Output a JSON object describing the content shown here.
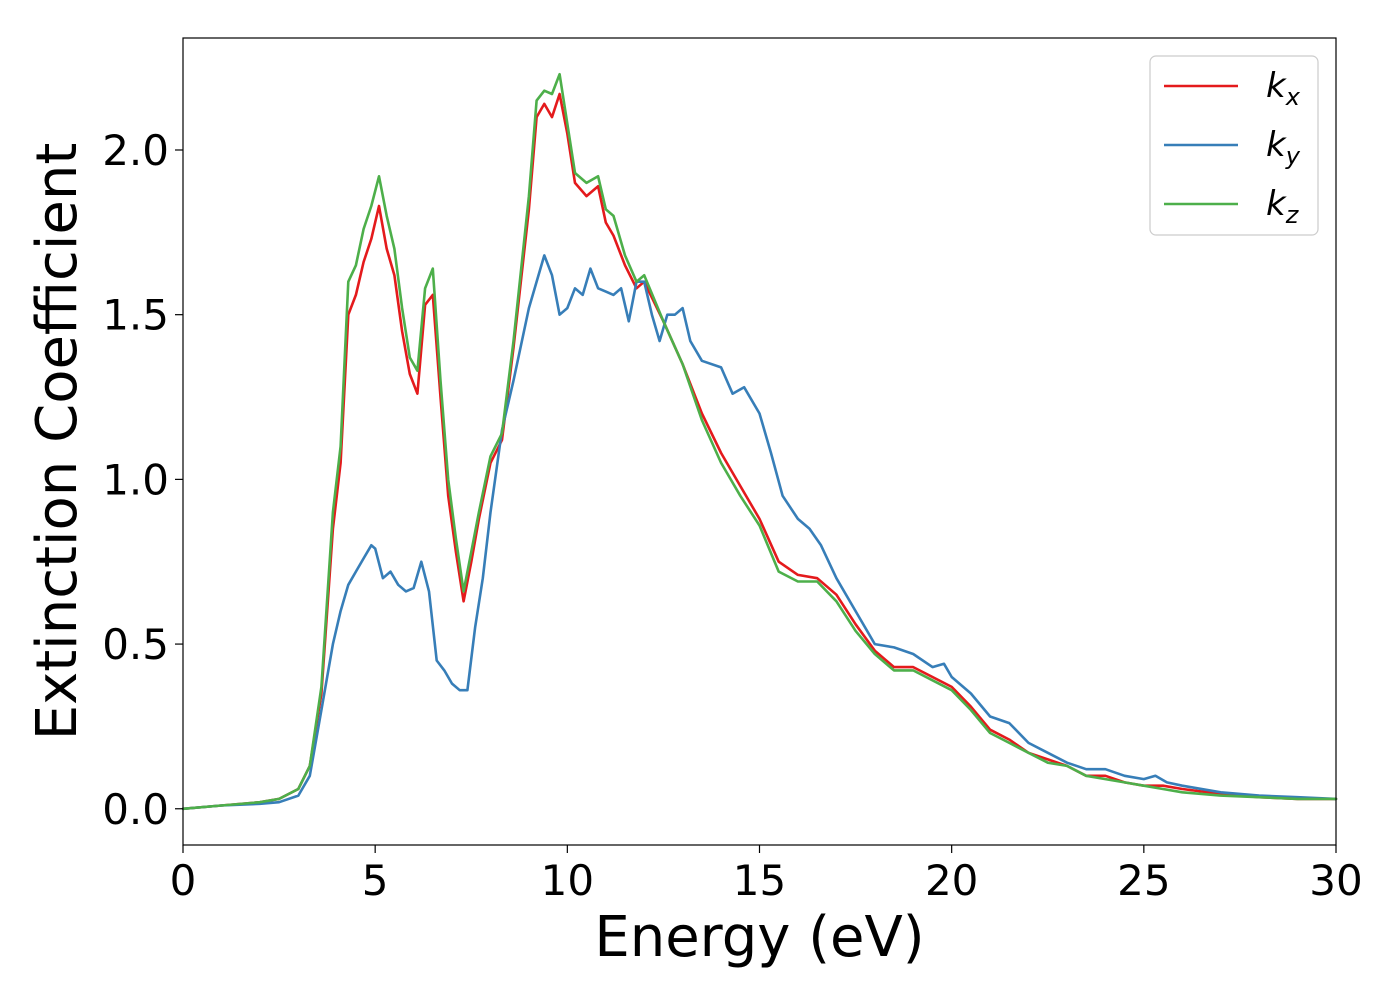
{
  "chart_data": {
    "type": "line",
    "xlabel": "Energy (eV)",
    "ylabel": "Extinction Coefficient",
    "xlim": [
      0,
      30
    ],
    "ylim": [
      -0.11,
      2.34
    ],
    "xticks": [
      0,
      5,
      10,
      15,
      20,
      25,
      30
    ],
    "xtick_labels": [
      "0",
      "5",
      "10",
      "15",
      "20",
      "25",
      "30"
    ],
    "yticks": [
      0.0,
      0.5,
      1.0,
      1.5,
      2.0
    ],
    "ytick_labels": [
      "0.0",
      "0.5",
      "1.0",
      "1.5",
      "2.0"
    ],
    "grid": false,
    "legend_position": "top-right",
    "series": [
      {
        "name": "k",
        "subscript": "x",
        "color": "#e41a1c",
        "x": [
          0,
          1,
          2,
          2.5,
          3,
          3.3,
          3.6,
          3.9,
          4.1,
          4.3,
          4.5,
          4.7,
          4.9,
          5.1,
          5.3,
          5.5,
          5.7,
          5.9,
          6.1,
          6.3,
          6.5,
          6.7,
          6.9,
          7.1,
          7.3,
          7.5,
          7.7,
          8.0,
          8.3,
          8.6,
          9.0,
          9.2,
          9.4,
          9.6,
          9.8,
          10.0,
          10.2,
          10.5,
          10.8,
          11.0,
          11.2,
          11.5,
          11.8,
          12.0,
          12.5,
          13.0,
          13.5,
          14.0,
          14.5,
          15.0,
          15.5,
          16.0,
          16.5,
          17.0,
          17.5,
          18.0,
          18.5,
          19.0,
          19.5,
          20.0,
          20.5,
          21.0,
          21.5,
          22.0,
          22.5,
          23.0,
          23.5,
          24.0,
          24.5,
          25.0,
          25.5,
          26.0,
          27.0,
          28.0,
          29.0,
          30.0
        ],
        "y": [
          0.0,
          0.01,
          0.02,
          0.03,
          0.06,
          0.13,
          0.35,
          0.85,
          1.05,
          1.5,
          1.56,
          1.66,
          1.73,
          1.83,
          1.7,
          1.62,
          1.45,
          1.32,
          1.26,
          1.53,
          1.56,
          1.25,
          0.95,
          0.78,
          0.63,
          0.75,
          0.88,
          1.05,
          1.12,
          1.4,
          1.82,
          2.1,
          2.14,
          2.1,
          2.17,
          2.05,
          1.9,
          1.86,
          1.89,
          1.78,
          1.74,
          1.65,
          1.58,
          1.6,
          1.48,
          1.35,
          1.2,
          1.08,
          0.98,
          0.88,
          0.75,
          0.71,
          0.7,
          0.65,
          0.56,
          0.48,
          0.43,
          0.43,
          0.4,
          0.37,
          0.31,
          0.24,
          0.21,
          0.17,
          0.15,
          0.13,
          0.1,
          0.1,
          0.08,
          0.07,
          0.07,
          0.06,
          0.045,
          0.035,
          0.03,
          0.03
        ]
      },
      {
        "name": "k",
        "subscript": "y",
        "color": "#377eb8",
        "x": [
          0,
          1,
          2,
          2.5,
          3,
          3.3,
          3.6,
          3.9,
          4.1,
          4.3,
          4.5,
          4.7,
          4.9,
          5.0,
          5.2,
          5.4,
          5.6,
          5.8,
          6.0,
          6.2,
          6.4,
          6.6,
          6.8,
          7.0,
          7.2,
          7.4,
          7.6,
          7.8,
          8.0,
          8.3,
          8.6,
          9.0,
          9.2,
          9.4,
          9.6,
          9.8,
          10.0,
          10.2,
          10.4,
          10.6,
          10.8,
          11.0,
          11.2,
          11.4,
          11.6,
          11.8,
          12.0,
          12.2,
          12.4,
          12.6,
          12.8,
          13.0,
          13.2,
          13.5,
          14.0,
          14.3,
          14.6,
          15.0,
          15.3,
          15.6,
          16.0,
          16.3,
          16.6,
          17.0,
          17.5,
          18.0,
          18.5,
          19.0,
          19.5,
          19.8,
          20.0,
          20.5,
          21.0,
          21.5,
          22.0,
          22.5,
          23.0,
          23.5,
          24.0,
          24.5,
          25.0,
          25.3,
          25.6,
          26.0,
          27.0,
          28.0,
          29.0,
          30.0
        ],
        "y": [
          0.0,
          0.01,
          0.015,
          0.02,
          0.04,
          0.1,
          0.3,
          0.5,
          0.6,
          0.68,
          0.72,
          0.76,
          0.8,
          0.79,
          0.7,
          0.72,
          0.68,
          0.66,
          0.67,
          0.75,
          0.66,
          0.45,
          0.42,
          0.38,
          0.36,
          0.36,
          0.55,
          0.7,
          0.9,
          1.15,
          1.3,
          1.52,
          1.6,
          1.68,
          1.62,
          1.5,
          1.52,
          1.58,
          1.56,
          1.64,
          1.58,
          1.57,
          1.56,
          1.58,
          1.48,
          1.6,
          1.6,
          1.5,
          1.42,
          1.5,
          1.5,
          1.52,
          1.42,
          1.36,
          1.34,
          1.26,
          1.28,
          1.2,
          1.08,
          0.95,
          0.88,
          0.85,
          0.8,
          0.7,
          0.6,
          0.5,
          0.49,
          0.47,
          0.43,
          0.44,
          0.4,
          0.35,
          0.28,
          0.26,
          0.2,
          0.17,
          0.14,
          0.12,
          0.12,
          0.1,
          0.09,
          0.1,
          0.08,
          0.07,
          0.05,
          0.04,
          0.035,
          0.03
        ]
      },
      {
        "name": "k",
        "subscript": "z",
        "color": "#4daf4a",
        "x": [
          0,
          1,
          2,
          2.5,
          3,
          3.3,
          3.6,
          3.9,
          4.1,
          4.3,
          4.5,
          4.7,
          4.9,
          5.1,
          5.3,
          5.5,
          5.7,
          5.9,
          6.1,
          6.3,
          6.5,
          6.7,
          6.9,
          7.1,
          7.3,
          7.5,
          7.7,
          8.0,
          8.3,
          8.6,
          9.0,
          9.2,
          9.4,
          9.6,
          9.8,
          10.0,
          10.2,
          10.5,
          10.8,
          11.0,
          11.2,
          11.5,
          11.8,
          12.0,
          12.5,
          13.0,
          13.5,
          14.0,
          14.5,
          15.0,
          15.5,
          16.0,
          16.5,
          17.0,
          17.5,
          18.0,
          18.5,
          19.0,
          19.5,
          20.0,
          20.5,
          21.0,
          21.5,
          22.0,
          22.5,
          23.0,
          23.5,
          24.0,
          24.5,
          25.0,
          25.5,
          26.0,
          27.0,
          28.0,
          29.0,
          30.0
        ],
        "y": [
          0.0,
          0.01,
          0.02,
          0.03,
          0.06,
          0.13,
          0.37,
          0.9,
          1.1,
          1.6,
          1.65,
          1.76,
          1.83,
          1.92,
          1.8,
          1.7,
          1.52,
          1.37,
          1.33,
          1.58,
          1.64,
          1.3,
          1.0,
          0.82,
          0.66,
          0.78,
          0.9,
          1.07,
          1.14,
          1.42,
          1.86,
          2.15,
          2.18,
          2.17,
          2.23,
          2.08,
          1.93,
          1.9,
          1.92,
          1.82,
          1.8,
          1.68,
          1.6,
          1.62,
          1.48,
          1.35,
          1.18,
          1.05,
          0.95,
          0.86,
          0.72,
          0.69,
          0.69,
          0.63,
          0.54,
          0.47,
          0.42,
          0.42,
          0.39,
          0.36,
          0.3,
          0.23,
          0.2,
          0.17,
          0.14,
          0.13,
          0.1,
          0.09,
          0.08,
          0.07,
          0.06,
          0.05,
          0.04,
          0.035,
          0.03,
          0.03
        ]
      }
    ]
  }
}
